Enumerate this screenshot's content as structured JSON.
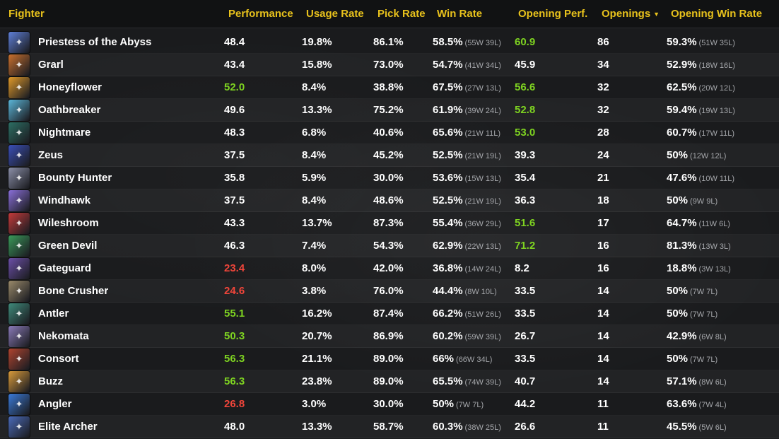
{
  "header": {
    "fighter": "Fighter",
    "performance": "Performance",
    "usage_rate": "Usage Rate",
    "pick_rate": "Pick Rate",
    "win_rate": "Win Rate",
    "opening_perf": "Opening Perf.",
    "openings": "Openings",
    "opening_win_rate": "Opening Win Rate"
  },
  "colors": {
    "header_text": "#e8c21c",
    "good": "#7ed321",
    "bad": "#f0453a",
    "muted": "#a5a7ab"
  },
  "rows": [
    {
      "name": "Priestess of the Abyss",
      "perf": "48.4",
      "perf_tone": "",
      "usage": "19.8%",
      "pick": "86.1%",
      "win": "58.5%",
      "win_wl": "(55W 39L)",
      "oper": "60.9",
      "oper_tone": "good",
      "openings": "86",
      "owr": "59.3%",
      "owr_wl": "(51W 35L)",
      "avatar_color": "#5e7fd6",
      "avatar_icon": "priestess-icon"
    },
    {
      "name": "Grarl",
      "perf": "43.4",
      "perf_tone": "",
      "usage": "15.8%",
      "pick": "73.0%",
      "win": "54.7%",
      "win_wl": "(41W 34L)",
      "oper": "45.9",
      "oper_tone": "",
      "openings": "34",
      "owr": "52.9%",
      "owr_wl": "(18W 16L)",
      "avatar_color": "#c9702e",
      "avatar_icon": "grarl-icon"
    },
    {
      "name": "Honeyflower",
      "perf": "52.0",
      "perf_tone": "good",
      "usage": "8.4%",
      "pick": "38.8%",
      "win": "67.5%",
      "win_wl": "(27W 13L)",
      "oper": "56.6",
      "oper_tone": "good",
      "openings": "32",
      "owr": "62.5%",
      "owr_wl": "(20W 12L)",
      "avatar_color": "#e09a2a",
      "avatar_icon": "honeyflower-icon"
    },
    {
      "name": "Oathbreaker",
      "perf": "49.6",
      "perf_tone": "",
      "usage": "13.3%",
      "pick": "75.2%",
      "win": "61.9%",
      "win_wl": "(39W 24L)",
      "oper": "52.8",
      "oper_tone": "good",
      "openings": "32",
      "owr": "59.4%",
      "owr_wl": "(19W 13L)",
      "avatar_color": "#5bb6d8",
      "avatar_icon": "oathbreaker-icon"
    },
    {
      "name": "Nightmare",
      "perf": "48.3",
      "perf_tone": "",
      "usage": "6.8%",
      "pick": "40.6%",
      "win": "65.6%",
      "win_wl": "(21W 11L)",
      "oper": "53.0",
      "oper_tone": "good",
      "openings": "28",
      "owr": "60.7%",
      "owr_wl": "(17W 11L)",
      "avatar_color": "#2c6e63",
      "avatar_icon": "nightmare-icon"
    },
    {
      "name": "Zeus",
      "perf": "37.5",
      "perf_tone": "",
      "usage": "8.4%",
      "pick": "45.2%",
      "win": "52.5%",
      "win_wl": "(21W 19L)",
      "oper": "39.3",
      "oper_tone": "",
      "openings": "24",
      "owr": "50%",
      "owr_wl": "(12W 12L)",
      "avatar_color": "#3a4fb8",
      "avatar_icon": "zeus-icon"
    },
    {
      "name": "Bounty Hunter",
      "perf": "35.8",
      "perf_tone": "",
      "usage": "5.9%",
      "pick": "30.0%",
      "win": "53.6%",
      "win_wl": "(15W 13L)",
      "oper": "35.4",
      "oper_tone": "",
      "openings": "21",
      "owr": "47.6%",
      "owr_wl": "(10W 11L)",
      "avatar_color": "#8b8fa8",
      "avatar_icon": "bounty-hunter-icon"
    },
    {
      "name": "Windhawk",
      "perf": "37.5",
      "perf_tone": "",
      "usage": "8.4%",
      "pick": "48.6%",
      "win": "52.5%",
      "win_wl": "(21W 19L)",
      "oper": "36.3",
      "oper_tone": "",
      "openings": "18",
      "owr": "50%",
      "owr_wl": "(9W 9L)",
      "avatar_color": "#8a6fd8",
      "avatar_icon": "windhawk-icon"
    },
    {
      "name": "Wileshroom",
      "perf": "43.3",
      "perf_tone": "",
      "usage": "13.7%",
      "pick": "87.3%",
      "win": "55.4%",
      "win_wl": "(36W 29L)",
      "oper": "51.6",
      "oper_tone": "good",
      "openings": "17",
      "owr": "64.7%",
      "owr_wl": "(11W 6L)",
      "avatar_color": "#c43a3a",
      "avatar_icon": "wileshroom-icon"
    },
    {
      "name": "Green Devil",
      "perf": "46.3",
      "perf_tone": "",
      "usage": "7.4%",
      "pick": "54.3%",
      "win": "62.9%",
      "win_wl": "(22W 13L)",
      "oper": "71.2",
      "oper_tone": "good",
      "openings": "16",
      "owr": "81.3%",
      "owr_wl": "(13W 3L)",
      "avatar_color": "#3a9a5a",
      "avatar_icon": "green-devil-icon"
    },
    {
      "name": "Gateguard",
      "perf": "23.4",
      "perf_tone": "bad",
      "usage": "8.0%",
      "pick": "42.0%",
      "win": "36.8%",
      "win_wl": "(14W 24L)",
      "oper": "8.2",
      "oper_tone": "",
      "openings": "16",
      "owr": "18.8%",
      "owr_wl": "(3W 13L)",
      "avatar_color": "#6c4fa8",
      "avatar_icon": "gateguard-icon"
    },
    {
      "name": "Bone Crusher",
      "perf": "24.6",
      "perf_tone": "bad",
      "usage": "3.8%",
      "pick": "76.0%",
      "win": "44.4%",
      "win_wl": "(8W 10L)",
      "oper": "33.5",
      "oper_tone": "",
      "openings": "14",
      "owr": "50%",
      "owr_wl": "(7W 7L)",
      "avatar_color": "#9a8a6a",
      "avatar_icon": "bone-crusher-icon"
    },
    {
      "name": "Antler",
      "perf": "55.1",
      "perf_tone": "good",
      "usage": "16.2%",
      "pick": "87.4%",
      "win": "66.2%",
      "win_wl": "(51W 26L)",
      "oper": "33.5",
      "oper_tone": "",
      "openings": "14",
      "owr": "50%",
      "owr_wl": "(7W 7L)",
      "avatar_color": "#3f8a7a",
      "avatar_icon": "antler-icon"
    },
    {
      "name": "Nekomata",
      "perf": "50.3",
      "perf_tone": "good",
      "usage": "20.7%",
      "pick": "86.9%",
      "win": "60.2%",
      "win_wl": "(59W 39L)",
      "oper": "26.7",
      "oper_tone": "",
      "openings": "14",
      "owr": "42.9%",
      "owr_wl": "(6W 8L)",
      "avatar_color": "#8a7ab8",
      "avatar_icon": "nekomata-icon"
    },
    {
      "name": "Consort",
      "perf": "56.3",
      "perf_tone": "good",
      "usage": "21.1%",
      "pick": "89.0%",
      "win": "66%",
      "win_wl": "(66W 34L)",
      "oper": "33.5",
      "oper_tone": "",
      "openings": "14",
      "owr": "50%",
      "owr_wl": "(7W 7L)",
      "avatar_color": "#b0442f",
      "avatar_icon": "consort-icon"
    },
    {
      "name": "Buzz",
      "perf": "56.3",
      "perf_tone": "good",
      "usage": "23.8%",
      "pick": "89.0%",
      "win": "65.5%",
      "win_wl": "(74W 39L)",
      "oper": "40.7",
      "oper_tone": "",
      "openings": "14",
      "owr": "57.1%",
      "owr_wl": "(8W 6L)",
      "avatar_color": "#d89a3a",
      "avatar_icon": "buzz-icon"
    },
    {
      "name": "Angler",
      "perf": "26.8",
      "perf_tone": "bad",
      "usage": "3.0%",
      "pick": "30.0%",
      "win": "50%",
      "win_wl": "(7W 7L)",
      "oper": "44.2",
      "oper_tone": "",
      "openings": "11",
      "owr": "63.6%",
      "owr_wl": "(7W 4L)",
      "avatar_color": "#3a7ad8",
      "avatar_icon": "angler-icon"
    },
    {
      "name": "Elite Archer",
      "perf": "48.0",
      "perf_tone": "",
      "usage": "13.3%",
      "pick": "58.7%",
      "win": "60.3%",
      "win_wl": "(38W 25L)",
      "oper": "26.6",
      "oper_tone": "",
      "openings": "11",
      "owr": "45.5%",
      "owr_wl": "(5W 6L)",
      "avatar_color": "#4a6ab8",
      "avatar_icon": "elite-archer-icon"
    }
  ]
}
